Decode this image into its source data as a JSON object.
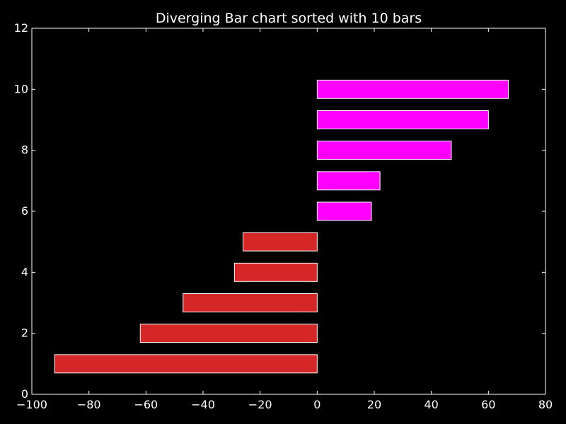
{
  "chart_data": {
    "type": "bar",
    "orientation": "horizontal",
    "title": "Diverging Bar chart sorted with 10 bars",
    "xlabel": "",
    "ylabel": "",
    "xlim": [
      -100,
      80
    ],
    "ylim": [
      0,
      12
    ],
    "x_ticks": [
      -100,
      -80,
      -60,
      -40,
      -20,
      0,
      20,
      40,
      60,
      80
    ],
    "x_tick_labels": [
      "−100",
      "−80",
      "−60",
      "−40",
      "−20",
      "0",
      "20",
      "40",
      "60",
      "80"
    ],
    "y_ticks": [
      0,
      2,
      4,
      6,
      8,
      10,
      12
    ],
    "y_tick_labels": [
      "0",
      "2",
      "4",
      "6",
      "8",
      "10",
      "12"
    ],
    "grid": false,
    "legend": "none",
    "bars": [
      {
        "y": 1,
        "value": -92
      },
      {
        "y": 2,
        "value": -62
      },
      {
        "y": 3,
        "value": -47
      },
      {
        "y": 4,
        "value": -29
      },
      {
        "y": 5,
        "value": -26
      },
      {
        "y": 6,
        "value": 19
      },
      {
        "y": 7,
        "value": 22
      },
      {
        "y": 8,
        "value": 47
      },
      {
        "y": 9,
        "value": 60
      },
      {
        "y": 10,
        "value": 67
      }
    ],
    "bar_height": 0.6,
    "colors": {
      "negative": "#d62728",
      "positive": "#ff00ff",
      "bar_edge": "#ffffff",
      "background": "#000000",
      "axes": "#ffffff",
      "text": "#ffffff"
    }
  }
}
